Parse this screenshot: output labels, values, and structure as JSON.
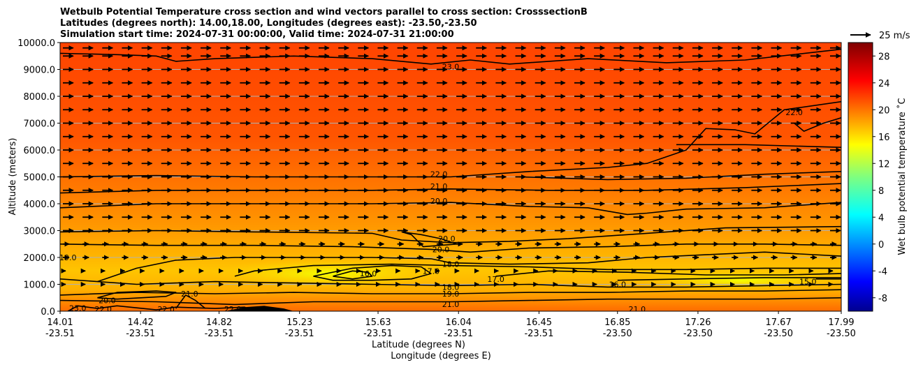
{
  "chart_data": {
    "type": "contour",
    "title_lines": [
      "Wetbulb Potential Temperature cross section and wind vectors parallel to cross section: CrosssectionB",
      "Latitudes (degrees north): 14.00,18.00, Longitudes (degrees east): -23.50,-23.50",
      "Simulation start time: 2024-07-31 00:00:00, Valid time: 2024-07-31 21:00:00"
    ],
    "xlabel": "Latitude (degrees N)",
    "xlabel2": "Longitude (degrees E)",
    "ylabel": "Altitude (meters)",
    "ylim": [
      0,
      10000
    ],
    "xlim": [
      14.01,
      17.99
    ],
    "x_ticks": [
      {
        "lat": "14.01",
        "lon": "-23.51"
      },
      {
        "lat": "14.42",
        "lon": "-23.51"
      },
      {
        "lat": "14.82",
        "lon": "-23.51"
      },
      {
        "lat": "15.23",
        "lon": "-23.51"
      },
      {
        "lat": "15.63",
        "lon": "-23.51"
      },
      {
        "lat": "16.04",
        "lon": "-23.51"
      },
      {
        "lat": "16.45",
        "lon": "-23.51"
      },
      {
        "lat": "16.85",
        "lon": "-23.50"
      },
      {
        "lat": "17.26",
        "lon": "-23.50"
      },
      {
        "lat": "17.67",
        "lon": "-23.50"
      },
      {
        "lat": "17.99",
        "lon": "-23.50"
      }
    ],
    "y_ticks": [
      "0.0",
      "1000.0",
      "2000.0",
      "3000.0",
      "4000.0",
      "5000.0",
      "6000.0",
      "7000.0",
      "8000.0",
      "9000.0",
      "10000.0"
    ],
    "grid": "horizontal",
    "colorbar": {
      "label": "Wet bulb potential temperature ˚C",
      "min": -10,
      "max": 30,
      "ticks": [
        "-8",
        "-4",
        "0",
        "4",
        "8",
        "12",
        "16",
        "20",
        "24",
        "28"
      ],
      "colormap": "jet"
    },
    "quiver_key": {
      "label": "25 m/s"
    },
    "contour_levels": [
      15.0,
      16.0,
      17.0,
      18.0,
      19.0,
      20.0,
      21.0,
      22.0,
      23.0
    ],
    "contour_labels": [
      {
        "text": "23.0",
        "x": 16.0,
        "y": 9100
      },
      {
        "text": "22.0",
        "x": 17.75,
        "y": 7400
      },
      {
        "text": "22.0",
        "x": 15.94,
        "y": 5100
      },
      {
        "text": "21.0",
        "x": 15.94,
        "y": 4650
      },
      {
        "text": "20.0",
        "x": 15.94,
        "y": 4100
      },
      {
        "text": "20.0",
        "x": 15.98,
        "y": 2700
      },
      {
        "text": "20.0",
        "x": 15.95,
        "y": 2300
      },
      {
        "text": "18.0",
        "x": 16.0,
        "y": 1750
      },
      {
        "text": "18.0",
        "x": 16.0,
        "y": 900
      },
      {
        "text": "19.0",
        "x": 16.0,
        "y": 650
      },
      {
        "text": "21.0",
        "x": 16.0,
        "y": 260
      },
      {
        "text": "19.0",
        "x": 14.05,
        "y": 2000
      },
      {
        "text": "16.0",
        "x": 15.58,
        "y": 1400
      },
      {
        "text": "17.0",
        "x": 15.9,
        "y": 1500
      },
      {
        "text": "17.0",
        "x": 16.23,
        "y": 1200
      },
      {
        "text": "16.0",
        "x": 16.85,
        "y": 1000
      },
      {
        "text": "15.0",
        "x": 17.82,
        "y": 1100
      },
      {
        "text": "20.0",
        "x": 14.25,
        "y": 400
      },
      {
        "text": "21.0",
        "x": 14.67,
        "y": 650
      },
      {
        "text": "22.0",
        "x": 14.23,
        "y": 80
      },
      {
        "text": "22.0",
        "x": 14.55,
        "y": 80
      },
      {
        "text": "22.0",
        "x": 14.89,
        "y": 80
      },
      {
        "text": "21.0",
        "x": 16.95,
        "y": 80
      },
      {
        "text": "23.0",
        "x": 14.1,
        "y": 120
      }
    ],
    "contours": [
      {
        "level": 23,
        "points": [
          [
            14.01,
            9600
          ],
          [
            14.3,
            9550
          ],
          [
            14.5,
            9500
          ],
          [
            14.6,
            9300
          ],
          [
            14.8,
            9400
          ],
          [
            15.2,
            9500
          ],
          [
            15.6,
            9400
          ],
          [
            15.9,
            9200
          ],
          [
            16.1,
            9350
          ],
          [
            16.3,
            9200
          ],
          [
            16.7,
            9400
          ],
          [
            17.1,
            9250
          ],
          [
            17.5,
            9350
          ],
          [
            17.99,
            9750
          ]
        ]
      },
      {
        "level": 22,
        "points": [
          [
            14.01,
            5000
          ],
          [
            14.5,
            5050
          ],
          [
            15.0,
            5000
          ],
          [
            15.6,
            5000
          ],
          [
            16.0,
            5000
          ],
          [
            16.4,
            5200
          ],
          [
            16.8,
            5350
          ],
          [
            17.0,
            5500
          ],
          [
            17.2,
            6000
          ],
          [
            17.3,
            6800
          ],
          [
            17.45,
            6750
          ],
          [
            17.55,
            6600
          ],
          [
            17.7,
            7500
          ],
          [
            17.99,
            7800
          ]
        ]
      },
      {
        "level": 22,
        "points": [
          [
            16.35,
            5000
          ],
          [
            16.8,
            4900
          ],
          [
            17.2,
            4950
          ],
          [
            17.6,
            5100
          ],
          [
            17.99,
            5200
          ]
        ]
      },
      {
        "level": 22,
        "points": [
          [
            17.75,
            7000
          ],
          [
            17.8,
            6700
          ],
          [
            17.9,
            7000
          ],
          [
            17.99,
            7200
          ]
        ]
      },
      {
        "level": 22,
        "points": [
          [
            17.15,
            6200
          ],
          [
            17.5,
            6200
          ],
          [
            17.99,
            6100
          ]
        ]
      },
      {
        "level": 21,
        "points": [
          [
            14.01,
            4400
          ],
          [
            14.5,
            4500
          ],
          [
            15.0,
            4500
          ],
          [
            15.6,
            4500
          ],
          [
            16.0,
            4550
          ],
          [
            16.5,
            4500
          ],
          [
            17.0,
            4500
          ],
          [
            17.5,
            4600
          ],
          [
            17.99,
            4750
          ]
        ]
      },
      {
        "level": 20,
        "points": [
          [
            14.01,
            3850
          ],
          [
            14.5,
            4000
          ],
          [
            15.0,
            4000
          ],
          [
            15.6,
            4000
          ],
          [
            16.0,
            4050
          ],
          [
            16.4,
            3900
          ],
          [
            16.7,
            3850
          ],
          [
            16.9,
            3600
          ],
          [
            17.0,
            3650
          ],
          [
            17.2,
            3800
          ],
          [
            17.6,
            3850
          ],
          [
            17.99,
            4050
          ]
        ]
      },
      {
        "level": 20,
        "points": [
          [
            15.75,
            2950
          ],
          [
            15.85,
            2850
          ],
          [
            15.95,
            2700
          ],
          [
            16.03,
            2500
          ],
          [
            15.86,
            2400
          ],
          [
            15.8,
            2850
          ],
          [
            15.75,
            2950
          ]
        ]
      },
      {
        "level": 20,
        "points": [
          [
            14.01,
            2950
          ],
          [
            14.5,
            3000
          ],
          [
            15.0,
            2950
          ],
          [
            15.6,
            2900
          ],
          [
            15.75,
            2650
          ],
          [
            16.0,
            2550
          ],
          [
            16.3,
            2600
          ],
          [
            16.6,
            2700
          ],
          [
            17.0,
            2900
          ],
          [
            17.4,
            3100
          ],
          [
            17.99,
            3150
          ]
        ]
      },
      {
        "level": 20,
        "points": [
          [
            14.0,
            2500
          ],
          [
            14.5,
            2450
          ],
          [
            15.0,
            2450
          ],
          [
            15.5,
            2400
          ],
          [
            15.9,
            2300
          ],
          [
            16.1,
            2200
          ],
          [
            16.4,
            2350
          ],
          [
            16.8,
            2400
          ],
          [
            17.2,
            2500
          ],
          [
            17.6,
            2500
          ],
          [
            17.99,
            2450
          ]
        ]
      },
      {
        "level": 19,
        "points": [
          [
            14.2,
            1100
          ],
          [
            14.4,
            1600
          ],
          [
            14.6,
            1900
          ],
          [
            14.9,
            2000
          ],
          [
            15.3,
            2000
          ],
          [
            15.6,
            2000
          ],
          [
            15.9,
            1950
          ],
          [
            16.0,
            1800
          ],
          [
            16.3,
            1750
          ],
          [
            16.7,
            1800
          ],
          [
            17.0,
            2000
          ],
          [
            17.3,
            2100
          ],
          [
            17.6,
            2200
          ],
          [
            17.99,
            2050
          ]
        ]
      },
      {
        "level": 18,
        "points": [
          [
            14.9,
            1300
          ],
          [
            15.0,
            1500
          ],
          [
            15.3,
            1700
          ],
          [
            15.7,
            1750
          ],
          [
            16.0,
            1700
          ],
          [
            16.4,
            1650
          ],
          [
            16.8,
            1550
          ],
          [
            17.2,
            1550
          ],
          [
            17.6,
            1600
          ],
          [
            17.99,
            1600
          ]
        ]
      },
      {
        "level": 18,
        "points": [
          [
            14.01,
            1200
          ],
          [
            14.4,
            1000
          ],
          [
            14.8,
            1100
          ],
          [
            15.2,
            1050
          ],
          [
            15.6,
            1000
          ],
          [
            16.0,
            950
          ],
          [
            16.4,
            1000
          ],
          [
            16.8,
            900
          ],
          [
            17.2,
            900
          ],
          [
            17.6,
            950
          ],
          [
            17.99,
            1000
          ]
        ]
      },
      {
        "level": 17,
        "points": [
          [
            15.3,
            1300
          ],
          [
            15.5,
            1600
          ],
          [
            15.7,
            1700
          ],
          [
            15.85,
            1650
          ],
          [
            15.9,
            1400
          ],
          [
            15.8,
            1200
          ],
          [
            15.6,
            1150
          ],
          [
            15.4,
            1150
          ],
          [
            15.3,
            1300
          ]
        ]
      },
      {
        "level": 17,
        "points": [
          [
            16.23,
            1300
          ],
          [
            16.5,
            1500
          ],
          [
            16.9,
            1450
          ],
          [
            17.3,
            1350
          ],
          [
            17.7,
            1350
          ],
          [
            17.99,
            1400
          ]
        ]
      },
      {
        "level": 16,
        "points": [
          [
            15.4,
            1300
          ],
          [
            15.5,
            1500
          ],
          [
            15.58,
            1450
          ],
          [
            15.6,
            1300
          ],
          [
            15.5,
            1200
          ],
          [
            15.4,
            1300
          ]
        ]
      },
      {
        "level": 16,
        "points": [
          [
            16.85,
            1150
          ],
          [
            17.2,
            1200
          ],
          [
            17.6,
            1250
          ],
          [
            17.99,
            1250
          ]
        ]
      },
      {
        "level": 15,
        "points": [
          [
            17.86,
            1200
          ],
          [
            17.99,
            1200
          ]
        ]
      },
      {
        "level": 19,
        "points": [
          [
            14.01,
            600
          ],
          [
            14.4,
            700
          ],
          [
            14.8,
            650
          ],
          [
            15.2,
            700
          ],
          [
            15.6,
            650
          ],
          [
            16.0,
            650
          ],
          [
            16.4,
            700
          ],
          [
            16.8,
            700
          ],
          [
            17.2,
            750
          ],
          [
            17.6,
            750
          ],
          [
            17.99,
            800
          ]
        ]
      },
      {
        "level": 20,
        "points": [
          [
            14.2,
            500
          ],
          [
            14.3,
            700
          ],
          [
            14.5,
            750
          ],
          [
            14.6,
            700
          ],
          [
            14.55,
            550
          ],
          [
            14.3,
            450
          ],
          [
            14.2,
            500
          ]
        ]
      },
      {
        "level": 21,
        "points": [
          [
            14.01,
            400
          ],
          [
            14.5,
            350
          ],
          [
            14.9,
            250
          ],
          [
            15.3,
            350
          ],
          [
            15.6,
            350
          ],
          [
            16.0,
            350
          ],
          [
            16.4,
            400
          ],
          [
            16.8,
            450
          ],
          [
            17.2,
            450
          ],
          [
            17.6,
            450
          ],
          [
            17.99,
            500
          ]
        ]
      },
      {
        "level": 21,
        "points": [
          [
            14.6,
            100
          ],
          [
            14.65,
            600
          ],
          [
            14.7,
            400
          ],
          [
            14.75,
            100
          ]
        ]
      },
      {
        "level": 22,
        "points": [
          [
            14.05,
            0
          ],
          [
            14.1,
            200
          ],
          [
            14.2,
            100
          ],
          [
            14.3,
            200
          ],
          [
            14.5,
            50
          ],
          [
            14.6,
            150
          ],
          [
            14.8,
            100
          ],
          [
            14.95,
            150
          ],
          [
            15.0,
            0
          ]
        ]
      }
    ],
    "terrain": [
      [
        14.85,
        0
      ],
      [
        14.95,
        150
      ],
      [
        15.05,
        200
      ],
      [
        15.15,
        100
      ],
      [
        15.2,
        0
      ]
    ],
    "wind": {
      "direction": "left-to-right",
      "rows_m": [
        9800,
        9500,
        9000,
        8500,
        8000,
        7500,
        7000,
        6500,
        6000,
        5500,
        5000,
        4500,
        4000,
        3500,
        3000,
        2500,
        2000,
        1500,
        1000
      ]
    }
  }
}
